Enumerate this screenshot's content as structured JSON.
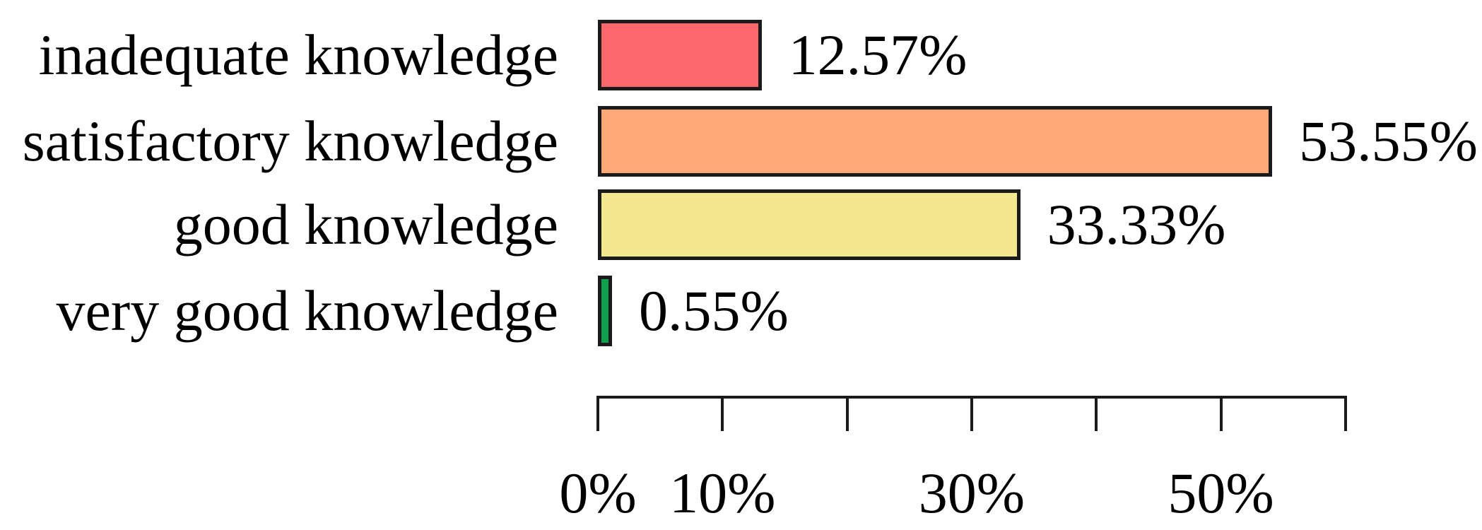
{
  "chart_data": {
    "type": "bar",
    "orientation": "horizontal",
    "title": "",
    "xlabel": "",
    "ylabel": "",
    "categories": [
      "inadequate knowledge",
      "satisfactory knowledge",
      "good knowledge",
      "very good knowledge"
    ],
    "values": [
      12.57,
      53.55,
      33.33,
      0.55
    ],
    "value_labels": [
      "12.57%",
      "53.55%",
      "33.33%",
      "0.55%"
    ],
    "bar_colors": [
      "#fb686c",
      "#fca877",
      "#f3e88e",
      "#0ea24e"
    ],
    "bar_border_color": "#1a1a1a",
    "text_color": "#000000",
    "background_color": "#ffffff",
    "xlim": [
      0,
      60
    ],
    "grid": false,
    "legend": false,
    "axis": {
      "tick_values": [
        0,
        10,
        20,
        30,
        40,
        50,
        60
      ],
      "tick_labels": [
        "0%",
        "10%",
        "",
        "30%",
        "",
        "50%",
        ""
      ]
    }
  }
}
